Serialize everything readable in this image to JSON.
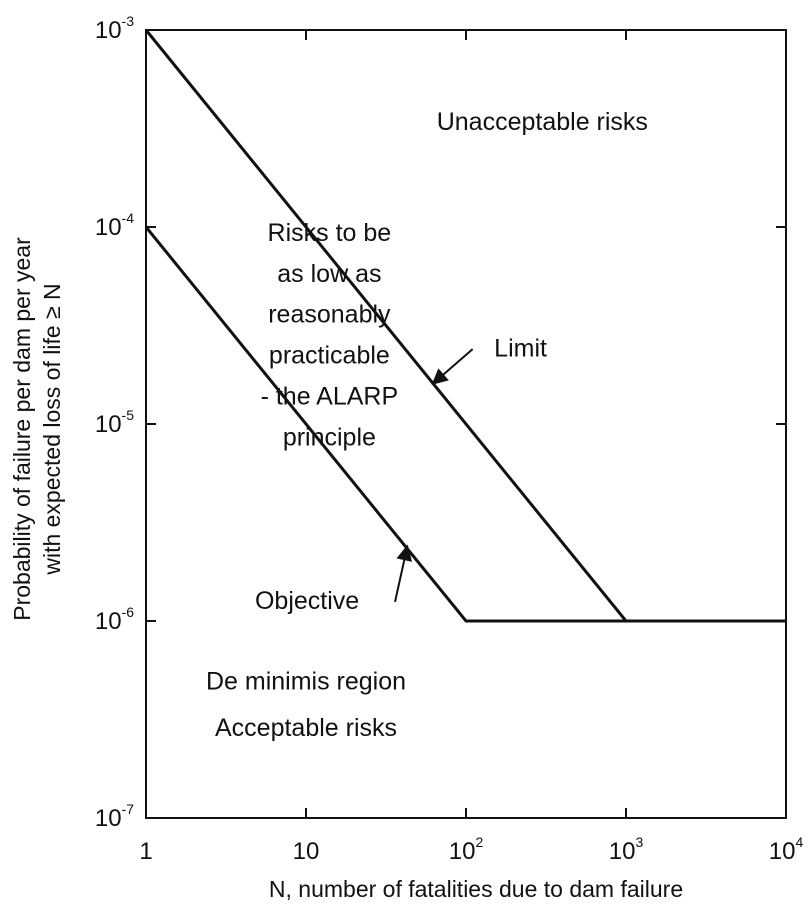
{
  "chart_data": {
    "type": "line",
    "title": "",
    "xlabel": "N, number of fatalities due to dam failure",
    "ylabel_lines": [
      "Probability of failure per dam per year",
      "with expected loss of life ≥ N"
    ],
    "x_scale": "log",
    "y_scale": "log",
    "xlim": [
      1,
      10000
    ],
    "ylim": [
      1e-07,
      0.001
    ],
    "grid": false,
    "x_ticks": [
      {
        "value": 1,
        "base": "1",
        "exp": ""
      },
      {
        "value": 10,
        "base": "10",
        "exp": ""
      },
      {
        "value": 100,
        "base": "10",
        "exp": "2"
      },
      {
        "value": 1000,
        "base": "10",
        "exp": "3"
      },
      {
        "value": 10000,
        "base": "10",
        "exp": "4"
      }
    ],
    "y_ticks": [
      {
        "value": 0.001,
        "base": "10",
        "exp": "-3"
      },
      {
        "value": 0.0001,
        "base": "10",
        "exp": "-4"
      },
      {
        "value": 1e-05,
        "base": "10",
        "exp": "-5"
      },
      {
        "value": 1e-06,
        "base": "10",
        "exp": "-6"
      },
      {
        "value": 1e-07,
        "base": "10",
        "exp": "-7"
      }
    ],
    "series": [
      {
        "name": "Limit",
        "x": [
          1,
          1000,
          10000
        ],
        "y": [
          0.001,
          1e-06,
          1e-06
        ]
      },
      {
        "name": "Objective",
        "x": [
          1,
          100,
          10000
        ],
        "y": [
          0.0001,
          1e-06,
          1e-06
        ]
      }
    ],
    "annotations": [
      {
        "id": "unacceptable",
        "lines": [
          "Unacceptable risks"
        ],
        "x": 300,
        "y": 0.00031,
        "anchor": "middle"
      },
      {
        "id": "alarp",
        "lines": [
          "Risks to be",
          "as low as",
          "reasonably",
          "practicable",
          "- the ALARP",
          "principle"
        ],
        "x": 14,
        "y": 8.5e-05,
        "anchor": "middle",
        "line_factor": 0.62
      },
      {
        "id": "de-minimis",
        "lines": [
          "De minimis region",
          "Acceptable risks"
        ],
        "x": 10,
        "y": 4.5e-07,
        "anchor": "middle",
        "line_factor": 0.58
      }
    ],
    "line_labels": [
      {
        "text": "Limit",
        "label_x": 150,
        "label_y": 2.2e-05,
        "arrow_from_x": 110,
        "arrow_from_y": 2.4e-05,
        "arrow_to_x": 62,
        "arrow_to_y": 1.6e-05
      },
      {
        "text": "Objective",
        "label_x": 4.8,
        "label_y": 1.15e-06,
        "arrow_from_x": 36,
        "arrow_from_y": 1.25e-06,
        "arrow_to_x": 43,
        "arrow_to_y": 2.4e-06
      }
    ]
  }
}
